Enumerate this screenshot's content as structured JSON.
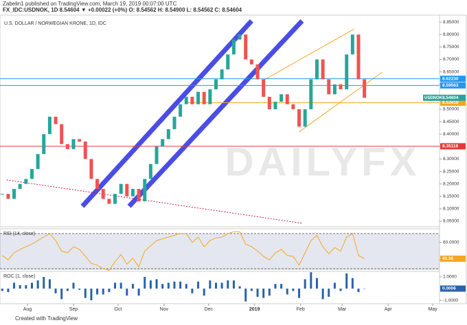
{
  "header": {
    "byline": "Zabelin1 published on TradingView.com, March 19, 2019 00:07:00 UTC",
    "quote": "FX_IDC:USDNOK, 1D  8.54604 ▼ +0.00022 (+0%)  O: 8.54562  H: 8.54900  L: 8.54562  C: 8.54604"
  },
  "footer": "Created with TradingView",
  "watermark": "DAILYFX",
  "chart_data": {
    "type": "candlestick",
    "title": "U.S. DOLLAR / NORWEGIAN KRONE, 1D, IDC",
    "symbol": "USDNOK",
    "up_color": "#26a69a",
    "down_color": "#ef5350",
    "x": [
      14,
      18,
      22,
      26,
      30,
      34,
      38,
      42,
      46,
      50,
      54,
      58,
      62,
      66,
      70,
      74,
      78,
      82,
      86,
      90,
      94,
      98,
      102,
      106,
      110,
      114,
      118,
      122,
      126,
      130,
      134,
      138,
      142,
      146,
      150,
      154,
      158,
      162,
      166,
      170,
      174,
      178,
      182,
      186,
      190,
      194,
      198,
      202,
      206,
      210,
      214,
      218,
      222,
      226,
      230,
      234,
      238,
      242,
      246,
      250,
      254,
      258
    ],
    "values": [
      8.16,
      8.14,
      8.18,
      8.2,
      8.22,
      8.26,
      8.32,
      8.4,
      8.47,
      8.44,
      8.36,
      8.34,
      8.38,
      8.37,
      8.3,
      8.22,
      8.18,
      8.14,
      8.12,
      8.16,
      8.2,
      8.15,
      8.18,
      8.13,
      8.22,
      8.28,
      8.35,
      8.38,
      8.42,
      8.47,
      8.52,
      8.55,
      8.52,
      8.57,
      8.52,
      8.58,
      8.62,
      8.66,
      8.72,
      8.78,
      8.8,
      8.7,
      8.68,
      8.62,
      8.55,
      8.5,
      8.53,
      8.56,
      8.52,
      8.5,
      8.43,
      8.5,
      8.62,
      8.7,
      8.62,
      8.56,
      8.6,
      8.58,
      8.72,
      8.8,
      8.62,
      8.54604
    ],
    "xlim": [
      12.5,
      308.6
    ],
    "xticks": [
      {
        "value": 31,
        "label": "Aug"
      },
      {
        "value": 62,
        "label": "Sep"
      },
      {
        "value": 92,
        "label": "Oct"
      },
      {
        "value": 123,
        "label": "Nov"
      },
      {
        "value": 153,
        "label": "Dec"
      },
      {
        "value": 184,
        "label": "2019"
      },
      {
        "value": 215,
        "label": "Feb"
      },
      {
        "value": 243,
        "label": "Mar"
      },
      {
        "value": 274,
        "label": "Apr"
      },
      {
        "value": 304,
        "label": "May"
      }
    ],
    "ylim": [
      8.028,
      8.878
    ],
    "yticks": [
      {
        "value": 8.05,
        "label": "8.05000"
      },
      {
        "value": 8.1,
        "label": "8.10000"
      },
      {
        "value": 8.15,
        "label": "8.15000"
      },
      {
        "value": 8.2,
        "label": "8.20000"
      },
      {
        "value": 8.25,
        "label": "8.25000"
      },
      {
        "value": 8.3,
        "label": "8.30000"
      },
      {
        "value": 8.35,
        "label": "8.35000"
      },
      {
        "value": 8.4,
        "label": "8.40000"
      },
      {
        "value": 8.45,
        "label": "8.45000"
      },
      {
        "value": 8.5,
        "label": "8.50000"
      },
      {
        "value": 8.55,
        "label": "8.55000"
      },
      {
        "value": 8.6,
        "label": "8.60000"
      },
      {
        "value": 8.65,
        "label": "8.65000"
      },
      {
        "value": 8.7,
        "label": "8.70000"
      },
      {
        "value": 8.75,
        "label": "8.75000"
      },
      {
        "value": 8.8,
        "label": "8.80000"
      },
      {
        "value": 8.85,
        "label": "8.85000"
      }
    ],
    "levels": [
      {
        "value": 8.6223,
        "label": "8.62230",
        "color": "#2196f3"
      },
      {
        "value": 8.59563,
        "label": "8.59563",
        "color": "#2196f3"
      },
      {
        "value": 8.52618,
        "label": "8.52618",
        "color": "#f5a623"
      },
      {
        "value": 8.35118,
        "label": "8.35118",
        "color": "#e53935"
      }
    ],
    "drawings": [
      {
        "color": "#2a2ee0",
        "width": 7,
        "x": [
          68,
          182
        ],
        "y": [
          8.11,
          8.855
        ]
      },
      {
        "color": "#2a2ee0",
        "width": 7,
        "x": [
          99.5,
          216
        ],
        "y": [
          8.11,
          8.855
        ]
      },
      {
        "color": "#f5a623",
        "width": 1,
        "x": [
          189,
          251
        ],
        "y": [
          8.613,
          8.822
        ]
      },
      {
        "color": "#f5a623",
        "width": 1,
        "x": [
          214,
          270
        ],
        "y": [
          8.409,
          8.649
        ]
      },
      {
        "color": "#c2185b",
        "width": 1,
        "dash": true,
        "x": [
          17,
          216
        ],
        "y": [
          8.216,
          8.042
        ]
      }
    ],
    "rsi": {
      "title": "RSI (14, close)",
      "color": "#f5a623",
      "values": [
        45,
        40,
        48,
        52,
        55,
        58,
        62,
        66,
        70,
        62,
        50,
        48,
        55,
        52,
        44,
        36,
        34,
        30,
        28,
        38,
        46,
        35,
        42,
        32,
        50,
        56,
        62,
        64,
        66,
        68,
        70,
        70,
        60,
        66,
        55,
        62,
        65,
        66,
        70,
        72,
        72,
        58,
        55,
        50,
        44,
        40,
        48,
        52,
        45,
        44,
        34,
        48,
        62,
        68,
        55,
        47,
        54,
        50,
        66,
        70,
        45,
        41.36
      ],
      "ylim": [
        29.2,
        75.4
      ],
      "yticks": [
        {
          "value": 60,
          "label": "60.0000"
        },
        {
          "value": 40,
          "label": "40.0000"
        }
      ],
      "bands": [
        70,
        30
      ]
    },
    "roc": {
      "title": "ROC (1, close)",
      "color": "#2962a8",
      "values": [
        -0.2,
        -0.3,
        0.5,
        0.3,
        0.3,
        0.5,
        0.7,
        1.0,
        0.8,
        -0.4,
        -0.9,
        -0.2,
        0.5,
        -0.1,
        -0.8,
        -1.0,
        -0.5,
        -0.5,
        -0.3,
        0.5,
        0.5,
        -0.6,
        0.4,
        -0.6,
        1.0,
        0.7,
        0.8,
        0.4,
        0.5,
        0.6,
        0.6,
        0.4,
        -0.4,
        0.6,
        -0.6,
        0.7,
        0.5,
        0.5,
        0.7,
        0.7,
        0.2,
        -1.1,
        -0.2,
        -0.7,
        -0.8,
        -0.6,
        0.4,
        0.4,
        -0.5,
        -0.2,
        -0.8,
        0.8,
        1.4,
        0.9,
        -0.9,
        -0.7,
        0.5,
        -0.2,
        1.3,
        0.9,
        -0.3,
        0.0006
      ],
      "ylim": [
        -1.29,
        1.47
      ],
      "yticks": [
        {
          "value": 1,
          "label": "1.0000"
        },
        {
          "value": -1,
          "label": "-1.0000"
        }
      ]
    }
  }
}
